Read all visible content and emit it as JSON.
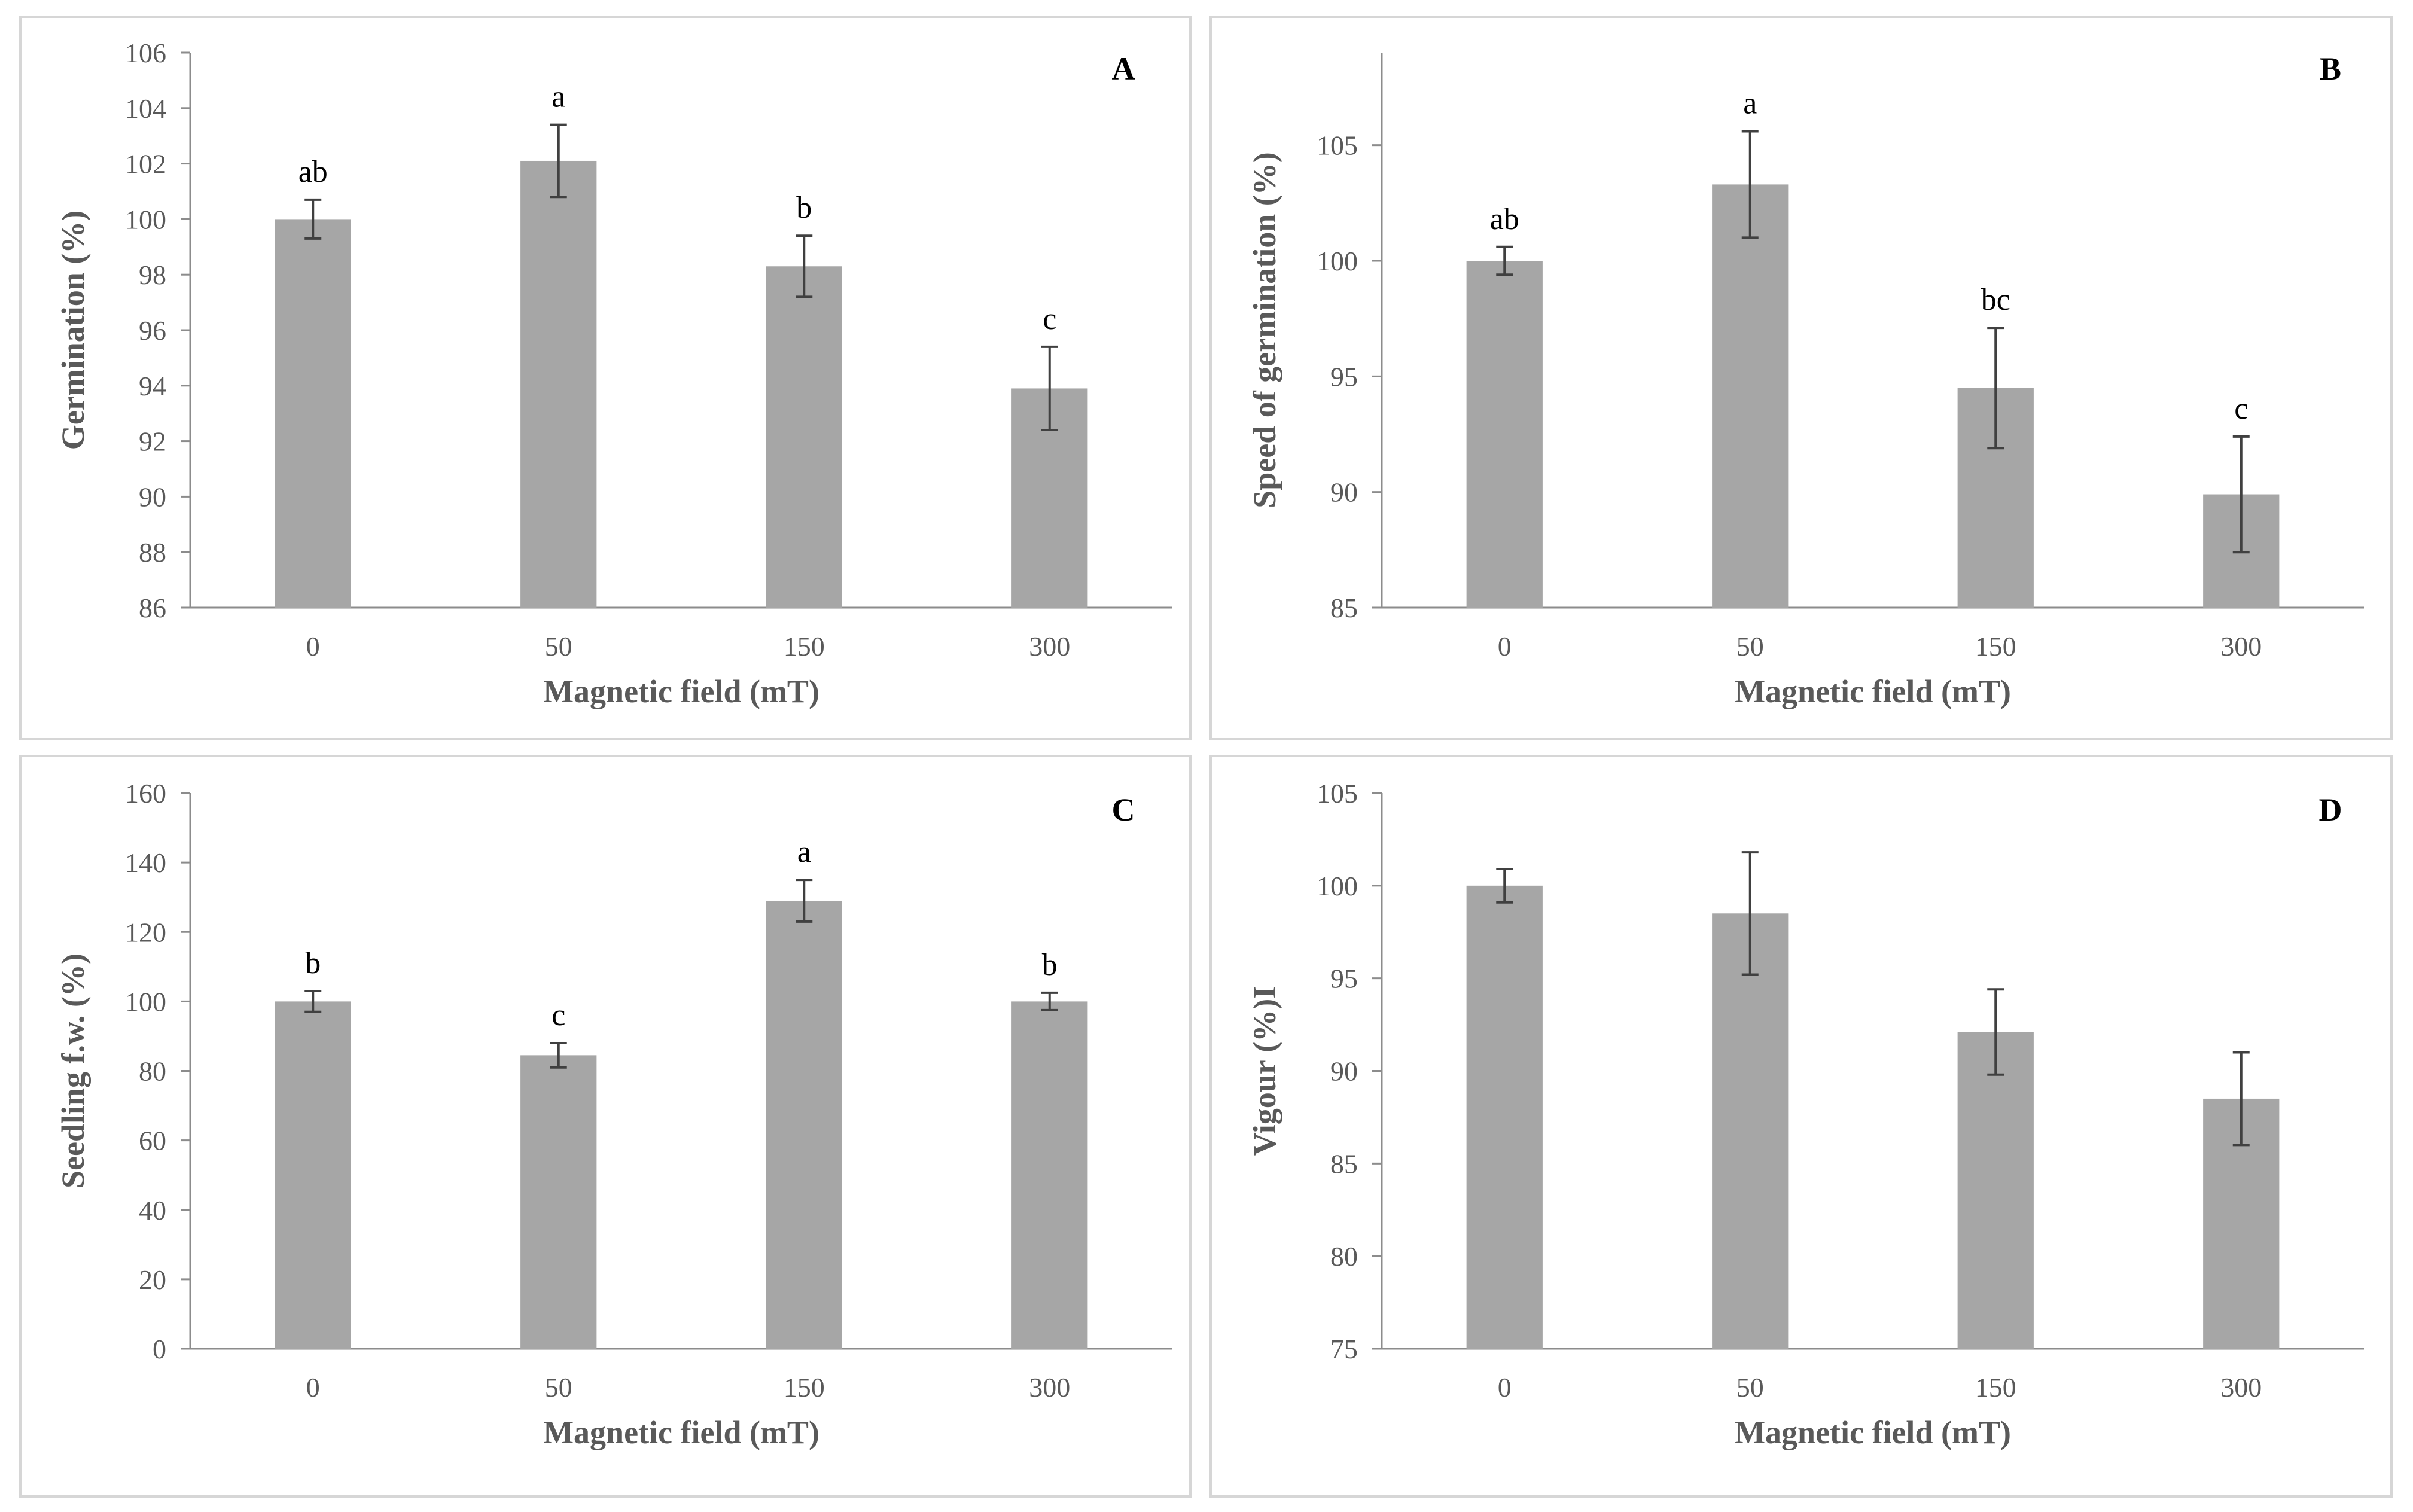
{
  "chart_data": [
    {
      "panel_label": "A",
      "type": "bar",
      "categories": [
        "0",
        "50",
        "150",
        "300"
      ],
      "values": [
        100.0,
        102.1,
        98.3,
        93.9
      ],
      "errors": [
        0.7,
        1.3,
        1.1,
        1.5
      ],
      "significance": [
        "ab",
        "a",
        "b",
        "c"
      ],
      "xlabel": "Magnetic field (mT)",
      "ylabel": "Germination (%)",
      "ylim": [
        86,
        106
      ],
      "yticks": [
        86,
        88,
        90,
        92,
        94,
        96,
        98,
        100,
        102,
        104,
        106
      ],
      "color": "#a6a6a6"
    },
    {
      "panel_label": "B",
      "type": "bar",
      "categories": [
        "0",
        "50",
        "150",
        "300"
      ],
      "values": [
        100.0,
        103.3,
        94.5,
        89.9
      ],
      "errors": [
        0.6,
        2.3,
        2.6,
        2.5
      ],
      "significance": [
        "ab",
        "a",
        "bc",
        "c"
      ],
      "xlabel": "Magnetic field (mT)",
      "ylabel": "Speed of germination (%)",
      "ylim": [
        85,
        109
      ],
      "yticks": [
        85,
        90,
        95,
        100,
        105
      ],
      "color": "#a6a6a6"
    },
    {
      "panel_label": "C",
      "type": "bar",
      "categories": [
        "0",
        "50",
        "150",
        "300"
      ],
      "values": [
        100.0,
        84.5,
        129.0,
        100.0
      ],
      "errors": [
        3.0,
        3.5,
        6.0,
        2.5
      ],
      "significance": [
        "b",
        "c",
        "a",
        "b"
      ],
      "xlabel": "Magnetic field (mT)",
      "ylabel": "Seedling f.w. (%)",
      "ylim": [
        0,
        160
      ],
      "yticks": [
        0,
        20,
        40,
        60,
        80,
        100,
        120,
        140,
        160
      ],
      "color": "#a6a6a6"
    },
    {
      "panel_label": "D",
      "type": "bar",
      "categories": [
        "0",
        "50",
        "150",
        "300"
      ],
      "values": [
        100.0,
        98.5,
        92.1,
        88.5
      ],
      "errors": [
        0.9,
        3.3,
        2.3,
        2.5
      ],
      "significance": [
        "",
        "",
        "",
        ""
      ],
      "xlabel": "Magnetic field (mT)",
      "ylabel": "Vigour  (%)I",
      "ylim": [
        75,
        105
      ],
      "yticks": [
        75,
        80,
        85,
        90,
        95,
        100,
        105
      ],
      "color": "#a6a6a6"
    }
  ]
}
